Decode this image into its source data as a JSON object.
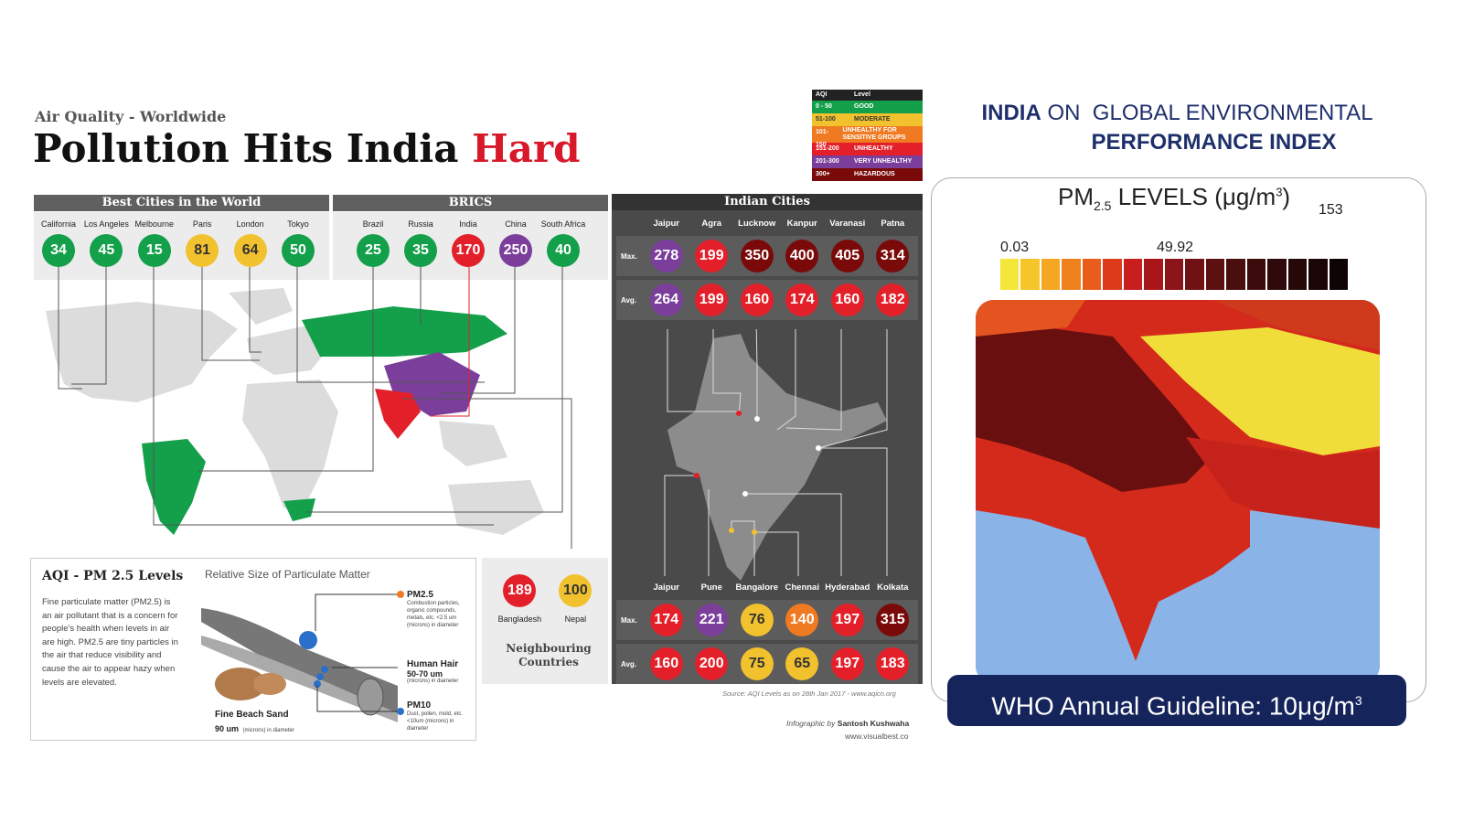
{
  "infographic": {
    "kicker": "Air Quality - Worldwide",
    "title_main": "Pollution Hits India",
    "title_accent": "Hard",
    "best_title": "Best Cities in the World",
    "best_cities": [
      {
        "name": "California",
        "v": "34",
        "c": "g"
      },
      {
        "name": "Los Angeles",
        "v": "45",
        "c": "g"
      },
      {
        "name": "Melbourne",
        "v": "15",
        "c": "g"
      },
      {
        "name": "Paris",
        "v": "81",
        "c": "y"
      },
      {
        "name": "London",
        "v": "64",
        "c": "y"
      },
      {
        "name": "Tokyo",
        "v": "50",
        "c": "g"
      }
    ],
    "brics_title": "BRICS",
    "brics": [
      {
        "name": "Brazil",
        "v": "25",
        "c": "g"
      },
      {
        "name": "Russia",
        "v": "35",
        "c": "g"
      },
      {
        "name": "India",
        "v": "170",
        "c": "r"
      },
      {
        "name": "China",
        "v": "250",
        "c": "p"
      },
      {
        "name": "South Africa",
        "v": "40",
        "c": "g"
      }
    ],
    "indian_title": "Indian Cities",
    "max_label": "Max.",
    "avg_label": "Avg.",
    "north": {
      "cities": [
        "Jaipur",
        "Agra",
        "Lucknow",
        "Kanpur",
        "Varanasi",
        "Patna"
      ],
      "max": [
        {
          "v": "278",
          "c": "p"
        },
        {
          "v": "199",
          "c": "r"
        },
        {
          "v": "350",
          "c": "dr"
        },
        {
          "v": "400",
          "c": "dr"
        },
        {
          "v": "405",
          "c": "dr"
        },
        {
          "v": "314",
          "c": "dr"
        }
      ],
      "avg": [
        {
          "v": "264",
          "c": "p"
        },
        {
          "v": "199",
          "c": "r"
        },
        {
          "v": "160",
          "c": "r"
        },
        {
          "v": "174",
          "c": "r"
        },
        {
          "v": "160",
          "c": "r"
        },
        {
          "v": "182",
          "c": "r"
        }
      ]
    },
    "south": {
      "cities": [
        "Jaipur",
        "Pune",
        "Bangalore",
        "Chennai",
        "Hyderabad",
        "Kolkata"
      ],
      "max": [
        {
          "v": "174",
          "c": "r"
        },
        {
          "v": "221",
          "c": "p"
        },
        {
          "v": "76",
          "c": "y"
        },
        {
          "v": "140",
          "c": "o"
        },
        {
          "v": "197",
          "c": "r"
        },
        {
          "v": "315",
          "c": "dr"
        }
      ],
      "avg": [
        {
          "v": "160",
          "c": "r"
        },
        {
          "v": "200",
          "c": "r"
        },
        {
          "v": "75",
          "c": "y"
        },
        {
          "v": "65",
          "c": "y"
        },
        {
          "v": "197",
          "c": "r"
        },
        {
          "v": "183",
          "c": "r"
        }
      ]
    },
    "legend_head": [
      "AQI",
      "Level"
    ],
    "legend": [
      {
        "r": "0 - 50",
        "l": "GOOD",
        "c": "#14a04a"
      },
      {
        "r": "51-100",
        "l": "MODERATE",
        "c": "#f2c12e"
      },
      {
        "r": "101-150",
        "l": "UNHEALTHY FOR SENSITIVE GROUPS",
        "c": "#f07a21"
      },
      {
        "r": "151-200",
        "l": "UNHEALTHY",
        "c": "#e3202a"
      },
      {
        "r": "201-300",
        "l": "VERY UNHEALTHY",
        "c": "#7b3f9b"
      },
      {
        "r": "300+",
        "l": "HAZARDOUS",
        "c": "#7a0a0a"
      }
    ],
    "pm_box_title": "AQI - PM 2.5 Levels",
    "pm_box_text": "Fine particulate matter (PM2.5) is an air pollutant that is a concern for people's health when levels in air are high. PM2.5 are tiny particles in the air that reduce visibility and cause the air to appear hazy when levels are elevated.",
    "rel_size_title": "Relative Size of Particulate Matter",
    "pm25_label": "PM2.5",
    "pm25_desc": "Combustion particles, organic compounds, metals, etc. <2.5 um (microns) in diameter",
    "hair_label": "Human Hair",
    "hair_size": "50-70 um",
    "hair_desc": "(microns) in diameter",
    "pm10_label": "PM10",
    "pm10_desc": "Dust, pollen, mold, etc. <10um (microns) in diameter",
    "sand_label": "Fine Beach Sand",
    "sand_size": "90 um",
    "sand_desc": "(microns) in diameter",
    "neighbours": [
      {
        "name": "Bangladesh",
        "v": "189",
        "c": "r"
      },
      {
        "name": "Nepal",
        "v": "100",
        "c": "y"
      }
    ],
    "neighbours_title": "Neighbouring Countries",
    "source": "Source: AQI Levels as on 28th Jan 2017 - www.aqicn.org",
    "credit_prefix": "Infographic by",
    "credit_name": "Santosh Kushwaha",
    "credit_url": "www.visualbest.co"
  },
  "epi": {
    "title_bold": "INDIA",
    "title_rest": " ON  GLOBAL ENVIRONMENTAL",
    "title_line2": "PERFORMANCE INDEX",
    "pm_title": "PM",
    "pm_sub": "2.5",
    "pm_title_rest": " LEVELS (μg/m",
    "pm_sup": "3",
    "pm_close": ")",
    "scale_min": "0.03",
    "scale_mid": "49.92",
    "scale_max": "153",
    "scale_colors": [
      "#f5e63a",
      "#f5c52a",
      "#f5a623",
      "#f0821e",
      "#e85d1c",
      "#dd3a1c",
      "#c81e1e",
      "#a8161a",
      "#8a1418",
      "#701214",
      "#5c1010",
      "#4a0e0e",
      "#3c0c0c",
      "#300a0a",
      "#250808",
      "#1a0606",
      "#0e0404"
    ],
    "who_text": "WHO Annual Guideline: 10μg/m",
    "who_sup": "3"
  }
}
